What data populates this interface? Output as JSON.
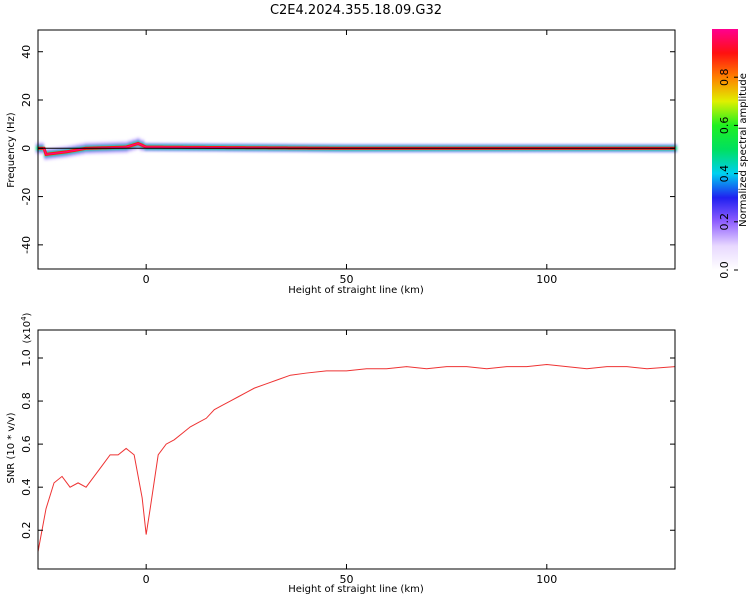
{
  "title": "C2E4.2024.355.18.09.G32",
  "colors": {
    "snr_line": "#ee3333",
    "center_line": "#000000",
    "colorbar": [
      "#ffffff",
      "#e8d8ff",
      "#9060ff",
      "#2020f0",
      "#00d0f0",
      "#00e060",
      "#20f020",
      "#e0f000",
      "#ff8000",
      "#ff1010",
      "#ff0090"
    ]
  },
  "chart_data": [
    {
      "type": "heatmap",
      "xlabel": "Height of straight line (km)",
      "ylabel": "Frequency (Hz)",
      "xlim": [
        -27,
        132
      ],
      "ylim": [
        -50,
        49
      ],
      "xticks": [
        0,
        50,
        100
      ],
      "yticks": [
        -40,
        -20,
        0,
        20,
        40
      ],
      "ridge_frequency_hz": 0,
      "ridge_points": [
        {
          "x": -25,
          "y": -2.5
        },
        {
          "x": -20,
          "y": -1.5
        },
        {
          "x": -15,
          "y": 0
        },
        {
          "x": -5,
          "y": 0.5
        },
        {
          "x": -2,
          "y": 2
        },
        {
          "x": 0,
          "y": 0.5
        },
        {
          "x": 50,
          "y": 0
        },
        {
          "x": 132,
          "y": 0
        }
      ],
      "colorbar": {
        "label": "Normalized spectral amplitude",
        "range": [
          0,
          1
        ],
        "ticks": [
          "0.0",
          "0.2",
          "0.4",
          "0.6",
          "0.8"
        ]
      }
    },
    {
      "type": "line",
      "xlabel": "Height of straight line (km)",
      "ylabel": "SNR (10 * v/v)",
      "scale_label": "(x10",
      "scale_exponent": "4",
      "xlim": [
        -27,
        132
      ],
      "ylim": [
        0.02,
        1.13
      ],
      "xticks": [
        0,
        50,
        100
      ],
      "yticks": [
        "0.2",
        "0.4",
        "0.6",
        "0.8",
        "1.0"
      ],
      "series": [
        {
          "x": [
            -27,
            -25,
            -23,
            -21,
            -19,
            -17,
            -15,
            -13,
            -11,
            -9,
            -7,
            -5,
            -3,
            -1,
            0,
            1,
            3,
            5,
            7,
            9,
            11,
            13,
            15,
            17,
            19,
            21,
            23,
            25,
            27,
            30,
            33,
            36,
            40,
            45,
            50,
            55,
            60,
            65,
            70,
            75,
            80,
            85,
            90,
            95,
            100,
            105,
            110,
            115,
            120,
            125,
            132
          ],
          "y": [
            0.1,
            0.3,
            0.42,
            0.45,
            0.4,
            0.42,
            0.4,
            0.45,
            0.5,
            0.55,
            0.55,
            0.58,
            0.55,
            0.35,
            0.18,
            0.3,
            0.55,
            0.6,
            0.62,
            0.65,
            0.68,
            0.7,
            0.72,
            0.76,
            0.78,
            0.8,
            0.82,
            0.84,
            0.86,
            0.88,
            0.9,
            0.92,
            0.93,
            0.94,
            0.94,
            0.95,
            0.95,
            0.96,
            0.95,
            0.96,
            0.96,
            0.95,
            0.96,
            0.96,
            0.97,
            0.96,
            0.95,
            0.96,
            0.96,
            0.95,
            0.96
          ]
        }
      ]
    }
  ]
}
